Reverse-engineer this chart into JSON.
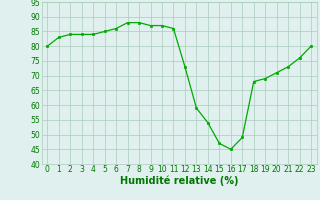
{
  "values": [
    80,
    83,
    84,
    84,
    84,
    85,
    86,
    88,
    88,
    87,
    87,
    86,
    73,
    59,
    54,
    47,
    45,
    49,
    68,
    69,
    71,
    73,
    76,
    80
  ],
  "xlabel": "Humidité relative (%)",
  "ylim": [
    40,
    95
  ],
  "yticks": [
    40,
    45,
    50,
    55,
    60,
    65,
    70,
    75,
    80,
    85,
    90,
    95
  ],
  "xticks": [
    0,
    1,
    2,
    3,
    4,
    5,
    6,
    7,
    8,
    9,
    10,
    11,
    12,
    13,
    14,
    15,
    16,
    17,
    18,
    19,
    20,
    21,
    22,
    23
  ],
  "line_color": "#00aa00",
  "marker_color": "#00aa00",
  "bg_color": "#dff0ee",
  "grid_color": "#aaccbb",
  "xlabel_color": "#007700",
  "tick_color": "#007700",
  "xlabel_fontsize": 7,
  "tick_fontsize": 5.5
}
